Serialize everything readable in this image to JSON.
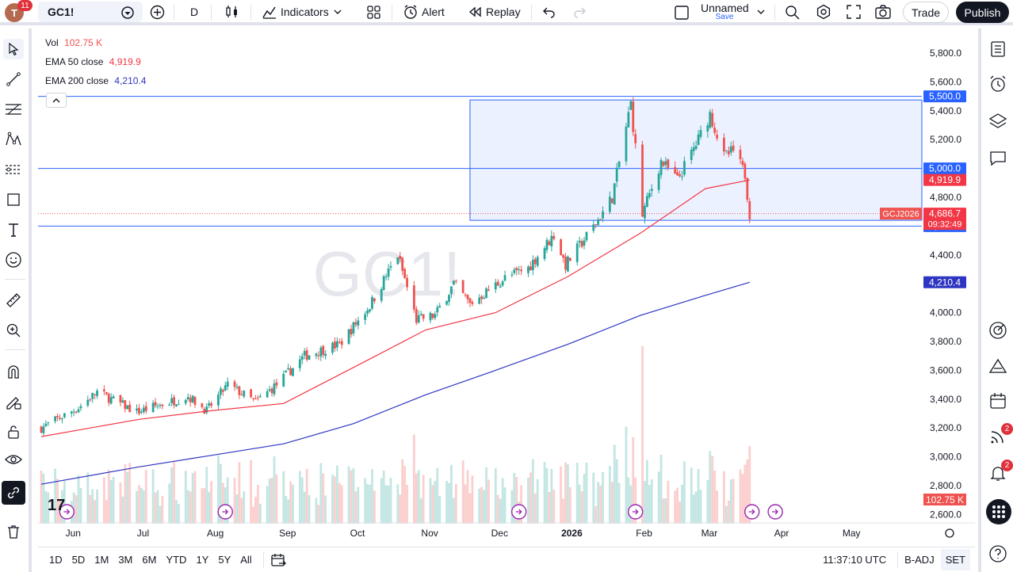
{
  "toolbar": {
    "avatar_letter": "T",
    "notif_count": "11",
    "symbol": "GC1!",
    "interval": "D",
    "indicators_label": "Indicators",
    "alert_label": "Alert",
    "replay_label": "Replay",
    "layout_name": "Unnamed",
    "save_label": "Save",
    "trade_label": "Trade",
    "publish_label": "Publish"
  },
  "legend": {
    "vol_label": "Vol",
    "vol_value": "102.75 K",
    "ema50_label": "EMA 50 close",
    "ema50_value": "4,919.9",
    "ema200_label": "EMA 200 close",
    "ema200_value": "4,210.4"
  },
  "watermark": "GC1!",
  "bottom": {
    "ranges": [
      "1D",
      "5D",
      "1M",
      "3M",
      "6M",
      "YTD",
      "1Y",
      "5Y",
      "All"
    ],
    "time": "11:37:10 UTC",
    "badj": "B-ADJ",
    "session": "SET"
  },
  "right_badges": {
    "signals": "2",
    "alerts": "2"
  },
  "colors": {
    "up": "#26a69a",
    "down": "#ef5350",
    "ema50": "#f23645",
    "ema200": "#2e35c2",
    "hline": "#2962ff",
    "box": "#2962ff"
  },
  "chart_data": {
    "type": "candlestick",
    "symbol_label": "GCJ2026",
    "y_axis": {
      "ticks": [
        "5,800.0",
        "5,600.0",
        "5,400.0",
        "5,200.0",
        "4,800.0",
        "4,400.0",
        "4,000.0",
        "3,800.0",
        "3,600.0",
        "3,400.0",
        "3,200.0",
        "3,000.0",
        "2,800.0",
        "2,600.0"
      ],
      "min": 2600,
      "max": 5800
    },
    "x_axis": {
      "labels": [
        {
          "label": "Jun",
          "bold": false
        },
        {
          "label": "Jul",
          "bold": false
        },
        {
          "label": "Aug",
          "bold": false
        },
        {
          "label": "Sep",
          "bold": false
        },
        {
          "label": "Oct",
          "bold": false
        },
        {
          "label": "Nov",
          "bold": false
        },
        {
          "label": "Dec",
          "bold": false
        },
        {
          "label": "2026",
          "bold": true
        },
        {
          "label": "Feb",
          "bold": false
        },
        {
          "label": "Mar",
          "bold": false
        },
        {
          "label": "Apr",
          "bold": false
        },
        {
          "label": "May",
          "bold": false
        }
      ]
    },
    "horizontal_lines": [
      {
        "value": 5500,
        "label": "5,500.0"
      },
      {
        "value": 5000,
        "label": "5,000.0"
      },
      {
        "value": 4600,
        "label": "4,600.0"
      }
    ],
    "rectangle": {
      "x_start": "2025-11-20",
      "x_end": "2026-03-31",
      "top": 5475,
      "bottom": 4640
    },
    "price_labels": [
      {
        "value": 4919.9,
        "label": "4,919.9",
        "color": "#f23645"
      },
      {
        "value": 4686.7,
        "label": "4,686.7",
        "countdown": "09:32:49",
        "color": "#f23645"
      },
      {
        "value": 4210.4,
        "label": "4,210.4",
        "color": "#2e35c2"
      }
    ],
    "last_volume_label": "102.75 K",
    "price_path": [
      {
        "date": "2025-05-20",
        "close": 3200
      },
      {
        "date": "2025-06-05",
        "close": 3340
      },
      {
        "date": "2025-06-13",
        "close": 3450
      },
      {
        "date": "2025-06-30",
        "close": 3310
      },
      {
        "date": "2025-07-22",
        "close": 3420
      },
      {
        "date": "2025-07-30",
        "close": 3320
      },
      {
        "date": "2025-08-08",
        "close": 3500
      },
      {
        "date": "2025-08-20",
        "close": 3380
      },
      {
        "date": "2025-08-29",
        "close": 3500
      },
      {
        "date": "2025-09-10",
        "close": 3700
      },
      {
        "date": "2025-09-25",
        "close": 3780
      },
      {
        "date": "2025-10-08",
        "close": 4050
      },
      {
        "date": "2025-10-20",
        "close": 4400
      },
      {
        "date": "2025-10-28",
        "close": 3950
      },
      {
        "date": "2025-11-05",
        "close": 3980
      },
      {
        "date": "2025-11-13",
        "close": 4200
      },
      {
        "date": "2025-11-20",
        "close": 4060
      },
      {
        "date": "2025-12-05",
        "close": 4240
      },
      {
        "date": "2025-12-15",
        "close": 4310
      },
      {
        "date": "2025-12-26",
        "close": 4540
      },
      {
        "date": "2025-12-31",
        "close": 4330
      },
      {
        "date": "2026-01-13",
        "close": 4620
      },
      {
        "date": "2026-01-20",
        "close": 4800
      },
      {
        "date": "2026-01-28",
        "close": 5450
      },
      {
        "date": "2026-02-02",
        "close": 4680
      },
      {
        "date": "2026-02-10",
        "close": 5050
      },
      {
        "date": "2026-02-17",
        "close": 4920
      },
      {
        "date": "2026-02-26",
        "close": 5200
      },
      {
        "date": "2026-03-03",
        "close": 5380
      },
      {
        "date": "2026-03-09",
        "close": 5080
      },
      {
        "date": "2026-03-13",
        "close": 5120
      },
      {
        "date": "2026-03-18",
        "close": 4960
      },
      {
        "date": "2026-03-20",
        "close": 4686.7
      }
    ],
    "ema50_path": [
      {
        "date": "2025-05-20",
        "value": 3140
      },
      {
        "date": "2025-07-01",
        "value": 3260
      },
      {
        "date": "2025-08-01",
        "value": 3320
      },
      {
        "date": "2025-09-01",
        "value": 3370
      },
      {
        "date": "2025-10-01",
        "value": 3620
      },
      {
        "date": "2025-11-01",
        "value": 3880
      },
      {
        "date": "2025-12-01",
        "value": 4000
      },
      {
        "date": "2026-01-01",
        "value": 4250
      },
      {
        "date": "2026-02-01",
        "value": 4550
      },
      {
        "date": "2026-03-01",
        "value": 4860
      },
      {
        "date": "2026-03-20",
        "value": 4919.9
      }
    ],
    "ema200_path": [
      {
        "date": "2025-05-20",
        "value": 2810
      },
      {
        "date": "2025-07-01",
        "value": 2930
      },
      {
        "date": "2025-08-01",
        "value": 3010
      },
      {
        "date": "2025-09-01",
        "value": 3090
      },
      {
        "date": "2025-10-01",
        "value": 3230
      },
      {
        "date": "2025-11-01",
        "value": 3430
      },
      {
        "date": "2025-12-01",
        "value": 3600
      },
      {
        "date": "2026-01-01",
        "value": 3780
      },
      {
        "date": "2026-02-01",
        "value": 3980
      },
      {
        "date": "2026-03-01",
        "value": 4120
      },
      {
        "date": "2026-03-20",
        "value": 4210.4
      }
    ]
  }
}
